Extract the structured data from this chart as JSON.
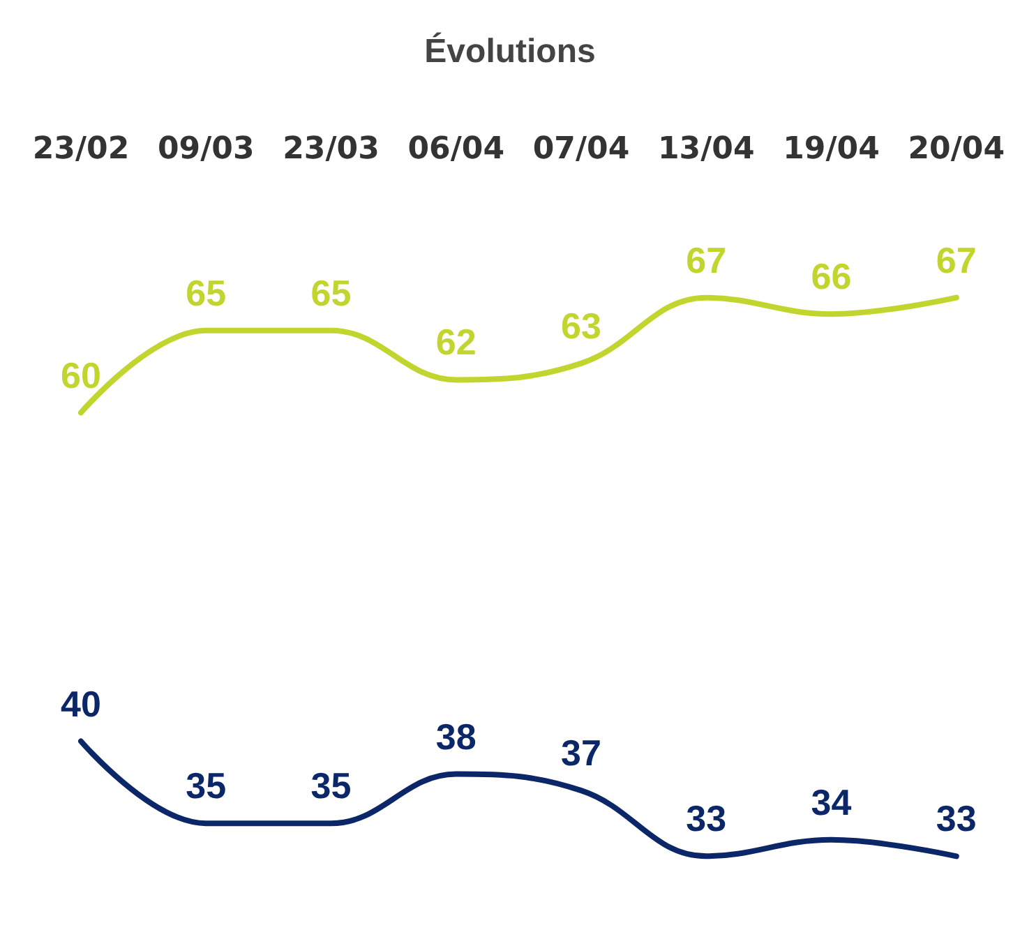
{
  "chart_data": {
    "type": "line",
    "title": "Évolutions",
    "categories": [
      "23/02",
      "09/03",
      "23/03",
      "06/04",
      "07/04",
      "13/04",
      "19/04",
      "20/04"
    ],
    "series": [
      {
        "color": "#c2d52f",
        "values": [
          60,
          65,
          65,
          62,
          63,
          67,
          66,
          67
        ]
      },
      {
        "color": "#0c2768",
        "values": [
          40,
          35,
          35,
          38,
          37,
          33,
          34,
          33
        ]
      }
    ],
    "data_labels": true,
    "tick_labels": "x",
    "line_style": "solid"
  }
}
